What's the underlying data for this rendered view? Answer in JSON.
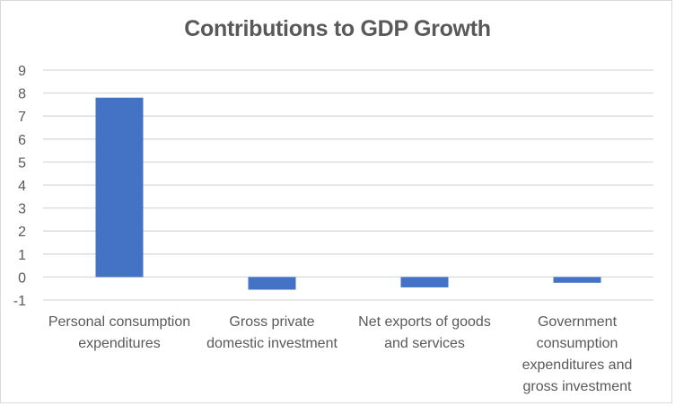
{
  "chart_data": {
    "type": "bar",
    "title": "Contributions to GDP Growth",
    "xlabel": "",
    "ylabel": "",
    "categories": [
      [
        "Personal consumption",
        "expenditures"
      ],
      [
        "Gross private",
        "domestic investment"
      ],
      [
        "Net exports of goods",
        "and services"
      ],
      [
        "Government",
        "consumption",
        "expenditures and",
        "gross investment"
      ]
    ],
    "category_names": [
      "Personal consumption expenditures",
      "Gross private domestic investment",
      "Net exports of goods and services",
      "Government consumption expenditures and gross investment"
    ],
    "values": [
      7.8,
      -0.55,
      -0.45,
      -0.25
    ],
    "ylim": [
      -1,
      9
    ],
    "yticks": [
      -1,
      0,
      1,
      2,
      3,
      4,
      5,
      6,
      7,
      8,
      9
    ],
    "grid": true,
    "legend": "none",
    "bar_color": "#4472C4",
    "grid_color": "#D9D9D9",
    "text_color": "#595959"
  }
}
